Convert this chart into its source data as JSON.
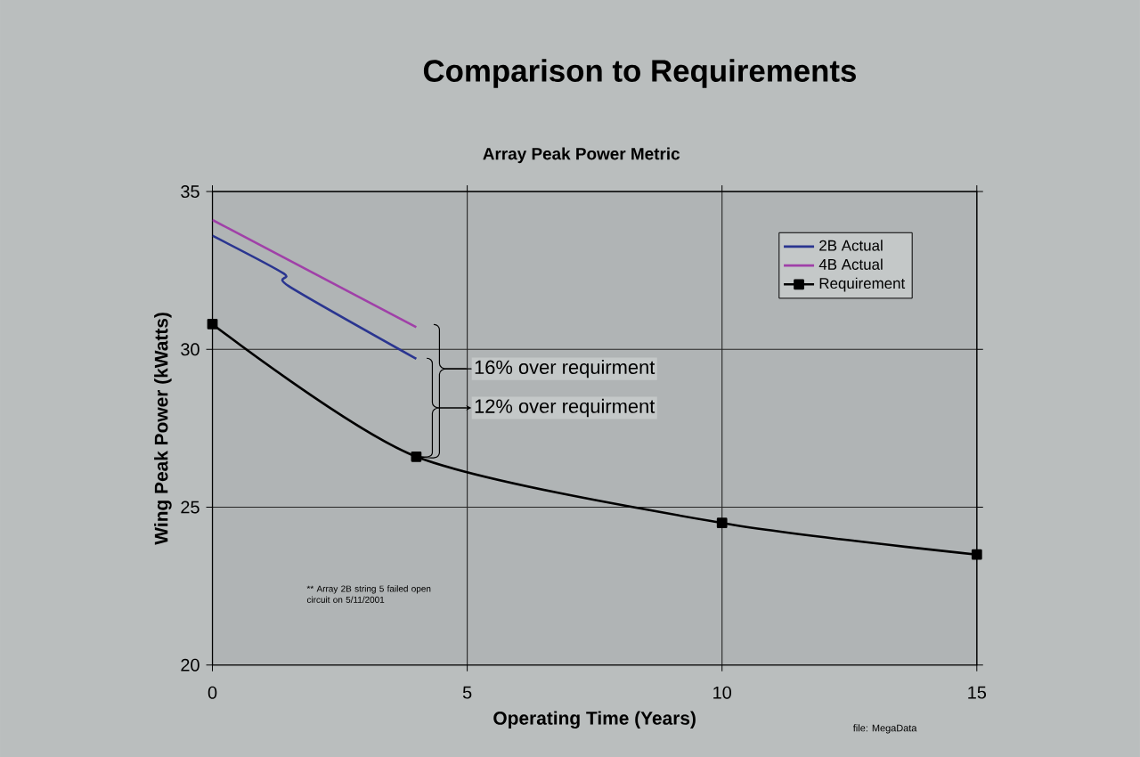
{
  "chart_data": {
    "type": "line",
    "title": "Comparison to Requirements",
    "subtitle": "Array Peak Power Metric",
    "xlabel": "Operating Time (Years)",
    "ylabel": "Wing Peak Power (kWatts)",
    "series": [
      {
        "name": "2B Actual",
        "color": "#2a3590",
        "x": [
          0,
          1.4,
          1.5,
          4
        ],
        "values": [
          33.6,
          32.4,
          32.0,
          29.7
        ]
      },
      {
        "name": "4B Actual",
        "color": "#a040a8",
        "x": [
          0,
          4
        ],
        "values": [
          34.1,
          30.7
        ]
      },
      {
        "name": "Requirement",
        "color": "#000000",
        "x": [
          0,
          4,
          10,
          15
        ],
        "values": [
          30.8,
          26.6,
          24.5,
          23.5
        ],
        "marker": "square"
      }
    ],
    "xlim": [
      0,
      15
    ],
    "ylim": [
      20,
      35
    ],
    "xticks": [
      0,
      5,
      10,
      15
    ],
    "yticks": [
      20,
      25,
      30,
      35
    ],
    "grid": true,
    "legend": "top right",
    "annotations": [
      {
        "text": "16% over requirment",
        "x": 4,
        "y": 26.6
      },
      {
        "text": "12% over requirment",
        "x": 4,
        "y": 26.6
      },
      "** Array 2B string 5 failed open circuit on 5/11/2001",
      "file: MegaData"
    ]
  }
}
